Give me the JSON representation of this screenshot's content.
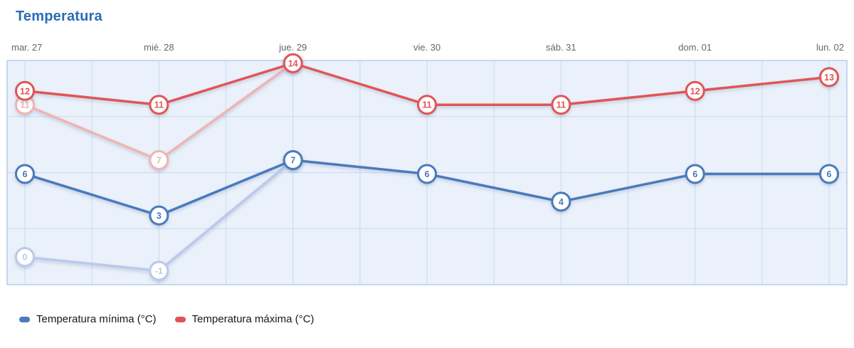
{
  "chart_data": {
    "type": "line",
    "title": "Temperatura",
    "x": [
      "mar. 27",
      "mié. 28",
      "jue. 29",
      "vie. 30",
      "sáb. 31",
      "dom. 01",
      "lun. 02"
    ],
    "series": [
      {
        "id": "min-faded",
        "values": [
          0,
          -1,
          7,
          null,
          null,
          null,
          null
        ],
        "color": "#bcc8ec"
      },
      {
        "id": "max-faded",
        "values": [
          11,
          7,
          14,
          null,
          null,
          null,
          null
        ],
        "color": "#f1b3b3"
      },
      {
        "id": "min",
        "values": [
          6,
          3,
          7,
          6,
          4,
          6,
          6
        ],
        "color": "#4a7abc"
      },
      {
        "id": "max",
        "values": [
          12,
          11,
          14,
          11,
          11,
          12,
          13
        ],
        "color": "#e15454"
      }
    ],
    "ylim": [
      -2,
      14.2
    ],
    "grid": "on",
    "legend_position": "bottom-left",
    "legend": [
      {
        "label": "Temperatura mínima (°C)",
        "color": "#4a7abc"
      },
      {
        "label": "Temperatura máxima (°C)",
        "color": "#e15454"
      }
    ],
    "colors": {
      "plot_bg": "#eaf1fa",
      "grid": "#c9d9f0",
      "border": "#b7cce9",
      "axis_label": "#666666",
      "title": "#2c6cb5",
      "marker_fill": "#ffffff"
    }
  }
}
